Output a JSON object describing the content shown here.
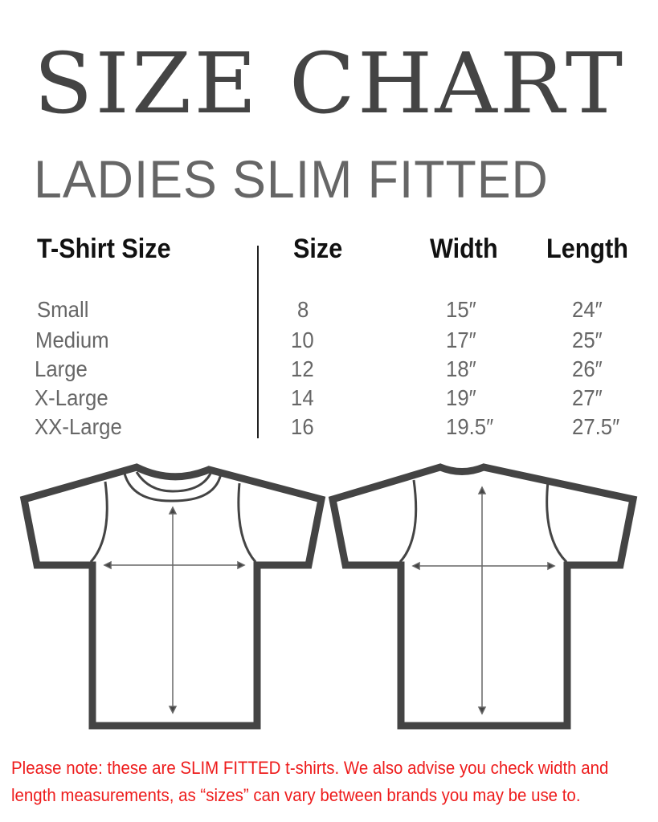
{
  "title": "SIZE CHART",
  "subtitle": "LADIES SLIM FITTED",
  "table": {
    "headers": [
      "T-Shirt Size",
      "Size",
      "Width",
      "Length"
    ],
    "rows": [
      [
        "Small",
        "8",
        "15″",
        "24″"
      ],
      [
        "Medium",
        "10",
        "17″",
        "25″"
      ],
      [
        "Large",
        "12",
        "18″",
        "26″"
      ],
      [
        "X-Large",
        "14",
        "19″",
        "27″"
      ],
      [
        "XX-Large",
        "16",
        "19.5″",
        "27.5″"
      ]
    ]
  },
  "diagrams": {
    "front": "t-shirt-front-icon",
    "back": "t-shirt-back-icon",
    "outline_color": "#444444"
  },
  "note": {
    "line1": "Please note: these are SLIM FITTED t-shirts. We also advise you check width and",
    "line2": "length measurements, as  “sizes” can vary between brands you may be use to.",
    "color": "#ee1c1c"
  }
}
